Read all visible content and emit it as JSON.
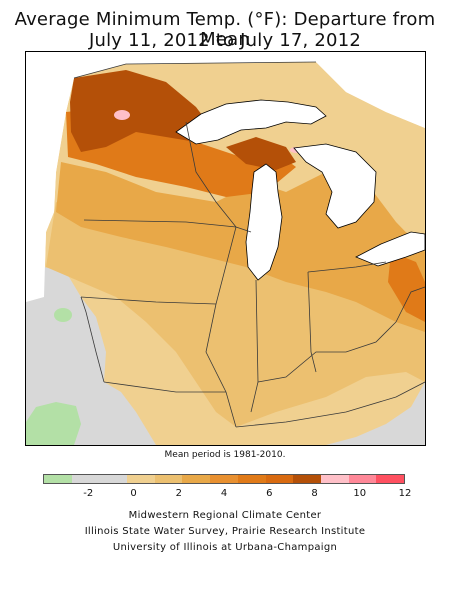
{
  "title": {
    "line1": "Average Minimum Temp. (°F): Departure from Mean",
    "line2": "July 11, 2012 to July 17, 2012"
  },
  "map": {
    "region": "Midwest",
    "states": [
      "MN",
      "WI",
      "MI",
      "IA",
      "IL",
      "IN",
      "OH",
      "MO",
      "KY"
    ],
    "background_colors": {
      "lake": "#ffffff",
      "frame": "#000000",
      "state_border": "#3a3a3a"
    },
    "note": "Mean period is 1981-2010."
  },
  "legend": {
    "colors": [
      "#b3e0a6",
      "#d8d8d8",
      "#d8d8d8",
      "#f0d090",
      "#ecc070",
      "#e8a848",
      "#e89030",
      "#e07a18",
      "#d86a10",
      "#b45008",
      "#ffc0c8",
      "#ff8898",
      "#ff5060"
    ],
    "tick_labels": [
      "-2",
      "0",
      "2",
      "4",
      "6",
      "8",
      "10",
      "12"
    ],
    "tick_values": [
      -2,
      0,
      2,
      4,
      6,
      8,
      10,
      12
    ]
  },
  "credits": {
    "line1": "Midwestern Regional Climate Center",
    "line2": "Illinois State Water Survey, Prairie Research Institute",
    "line3": "University of Illinois at Urbana-Champaign"
  }
}
